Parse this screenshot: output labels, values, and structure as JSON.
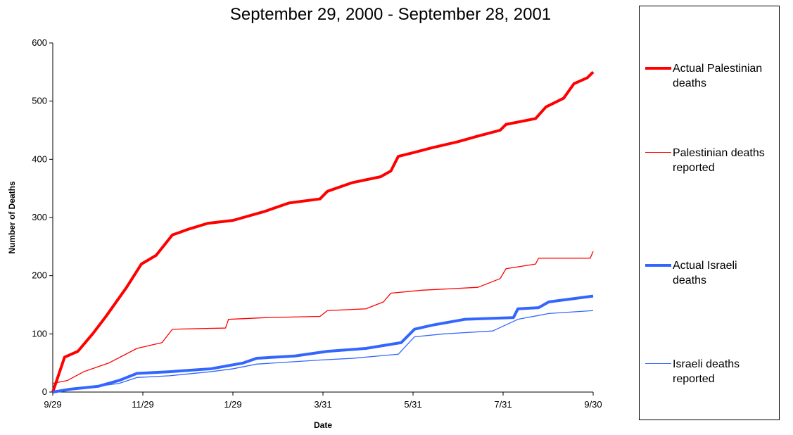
{
  "chart_data": {
    "type": "line",
    "title": "September 29, 2000 - September 28, 2001",
    "x_label": "Date",
    "y_label": "Number of Deaths",
    "xlim": [
      0,
      366
    ],
    "xticks": [
      {
        "value": 0,
        "label": "9/29"
      },
      {
        "value": 61,
        "label": "11/29"
      },
      {
        "value": 122,
        "label": "1/29"
      },
      {
        "value": 183,
        "label": "3/31"
      },
      {
        "value": 244,
        "label": "5/31"
      },
      {
        "value": 305,
        "label": "7/31"
      },
      {
        "value": 366,
        "label": "9/30"
      }
    ],
    "ylim": [
      0,
      600
    ],
    "yticks": [
      0,
      100,
      200,
      300,
      400,
      500,
      600
    ],
    "grid": false,
    "legend": "right",
    "series": [
      {
        "name": "Actual Palestinian deaths",
        "color": "#ff0000",
        "width": 4,
        "x": [
          0,
          2,
          8,
          17,
          27,
          36,
          50,
          60,
          70,
          81,
          92,
          105,
          122,
          143,
          160,
          181,
          186,
          203,
          222,
          229,
          234,
          245,
          257,
          274,
          288,
          303,
          307,
          327,
          334,
          346,
          353,
          362,
          366
        ],
        "values": [
          0,
          15,
          60,
          70,
          100,
          130,
          180,
          220,
          235,
          270,
          280,
          290,
          295,
          310,
          325,
          332,
          345,
          360,
          370,
          380,
          405,
          412,
          420,
          430,
          440,
          450,
          460,
          470,
          490,
          505,
          530,
          540,
          550
        ]
      },
      {
        "name": "Palestinian deaths reported",
        "color": "#ff0000",
        "width": 1.3,
        "x": [
          0,
          10,
          21,
          38,
          57,
          74,
          81,
          117,
          119,
          145,
          181,
          186,
          212,
          224,
          229,
          250,
          288,
          303,
          307,
          327,
          329,
          364,
          366
        ],
        "values": [
          15,
          20,
          35,
          50,
          75,
          85,
          108,
          110,
          125,
          128,
          130,
          140,
          143,
          155,
          170,
          175,
          180,
          195,
          212,
          220,
          230,
          230,
          242
        ]
      },
      {
        "name": "Actual Israeli deaths",
        "color": "#3366ff",
        "width": 4,
        "x": [
          0,
          12,
          31,
          45,
          57,
          79,
          107,
          129,
          138,
          164,
          186,
          212,
          236,
          245,
          257,
          279,
          312,
          315,
          329,
          336,
          366
        ],
        "values": [
          0,
          5,
          10,
          20,
          32,
          35,
          40,
          50,
          58,
          62,
          70,
          75,
          85,
          108,
          115,
          125,
          128,
          143,
          145,
          155,
          165
        ]
      },
      {
        "name": "Israeli deaths reported",
        "color": "#3366ff",
        "width": 1.3,
        "x": [
          0,
          12,
          31,
          45,
          57,
          79,
          107,
          122,
          138,
          181,
          203,
          234,
          245,
          265,
          298,
          315,
          336,
          366
        ],
        "values": [
          0,
          5,
          10,
          15,
          25,
          28,
          35,
          40,
          48,
          55,
          58,
          65,
          95,
          100,
          105,
          125,
          135,
          140
        ]
      }
    ]
  }
}
